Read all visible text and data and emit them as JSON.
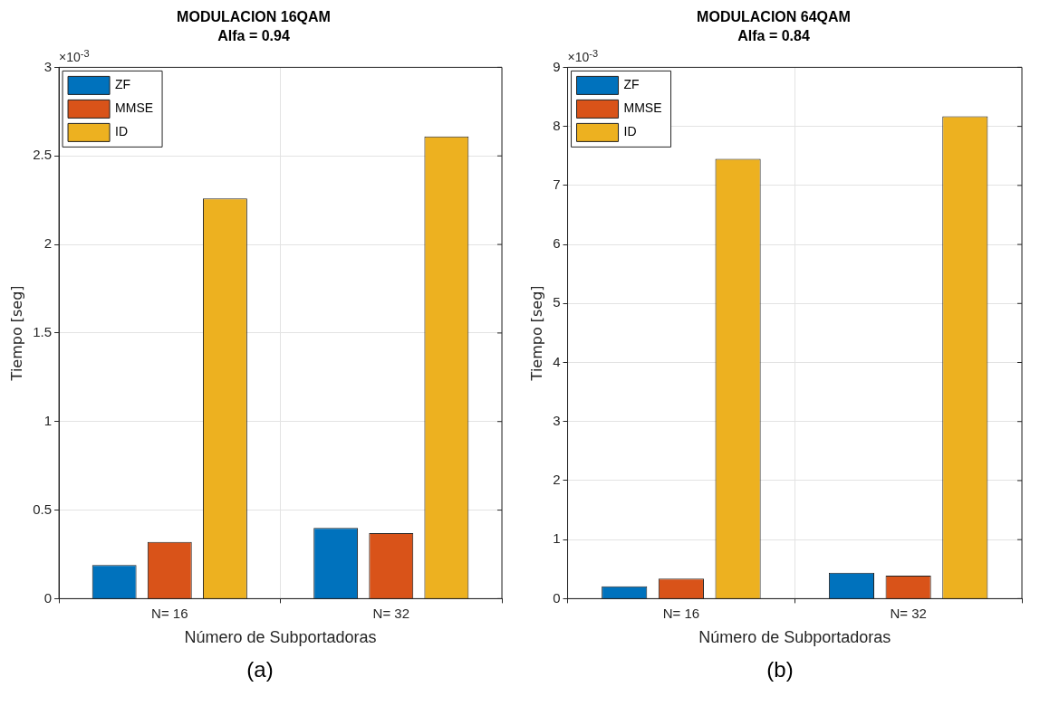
{
  "chart_data": [
    {
      "type": "bar",
      "title": "MODULACION 16QAM",
      "subtitle": "Alfa = 0.94",
      "xlabel": "Número de Subportadoras",
      "ylabel": "Tiempo [seg]",
      "categories": [
        "N= 16",
        "N= 32"
      ],
      "series": [
        {
          "name": "ZF",
          "color": "#0072bd",
          "values": [
            0.19,
            0.4
          ]
        },
        {
          "name": "MMSE",
          "color": "#d95319",
          "values": [
            0.32,
            0.37
          ]
        },
        {
          "name": "ID",
          "color": "#edb120",
          "values": [
            2.26,
            2.61
          ]
        }
      ],
      "ylim": [
        0,
        3
      ],
      "yticks": [
        0,
        0.5,
        1,
        1.5,
        2,
        2.5,
        3
      ],
      "grid": true,
      "legend": "top left",
      "annotations": [
        "×10$^{-3}$",
        "(a)"
      ]
    },
    {
      "type": "bar",
      "title": "MODULACION 64QAM",
      "subtitle": "Alfa = 0.84",
      "xlabel": "Número de Subportadoras",
      "ylabel": "Tiempo [seg]",
      "categories": [
        "N= 16",
        "N= 32"
      ],
      "series": [
        {
          "name": "ZF",
          "color": "#0072bd",
          "values": [
            0.21,
            0.44
          ]
        },
        {
          "name": "MMSE",
          "color": "#d95319",
          "values": [
            0.34,
            0.39
          ]
        },
        {
          "name": "ID",
          "color": "#edb120",
          "values": [
            7.45,
            8.17
          ]
        }
      ],
      "ylim": [
        0,
        9
      ],
      "yticks": [
        0,
        1,
        2,
        3,
        4,
        5,
        6,
        7,
        8,
        9
      ],
      "grid": true,
      "legend": "top left",
      "annotations": [
        "×10$^{-3}$",
        "(b)"
      ]
    }
  ]
}
